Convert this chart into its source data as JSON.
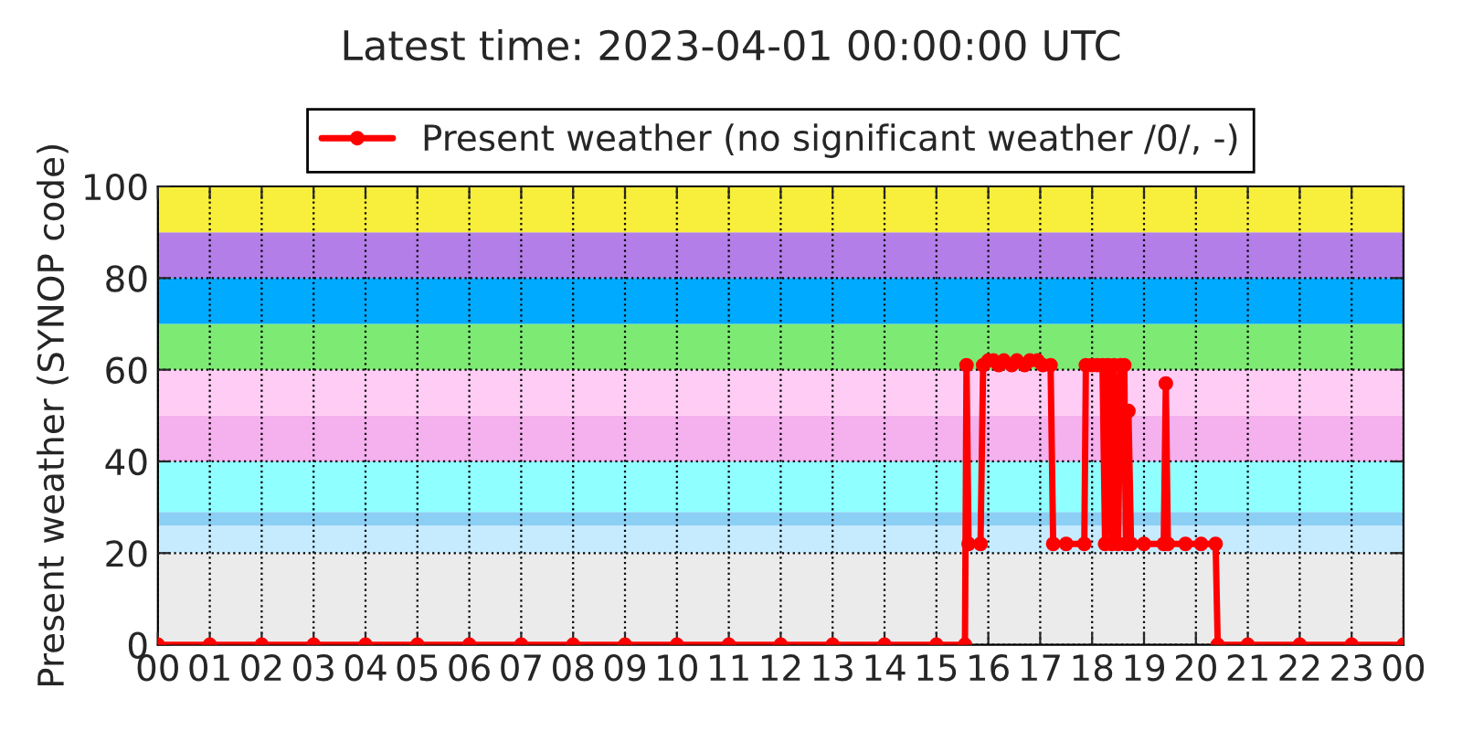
{
  "chart_data": {
    "type": "line",
    "title": "Latest time: 2023-04-01 00:00:00 UTC",
    "ylabel": "Present weather (SYNOP code)",
    "x": [
      0,
      1,
      2,
      3,
      4,
      5,
      6,
      7,
      8,
      9,
      10,
      11,
      12,
      13,
      14,
      15,
      15.55,
      15.58,
      15.62,
      15.85,
      15.9,
      16.0,
      16.1,
      16.2,
      16.3,
      16.45,
      16.55,
      16.7,
      16.8,
      16.95,
      17.05,
      17.2,
      17.25,
      17.5,
      17.85,
      17.88,
      18.0,
      18.1,
      18.2,
      18.25,
      18.3,
      18.38,
      18.42,
      18.5,
      18.55,
      18.62,
      18.65,
      18.7,
      18.75,
      19.0,
      19.38,
      19.42,
      19.46,
      19.8,
      20.1,
      20.38,
      20.42,
      21,
      22,
      23,
      24
    ],
    "series": [
      {
        "name": "Present weather (no significant weather /0/, -)",
        "color": "#ff0000",
        "values": [
          0,
          0,
          0,
          0,
          0,
          0,
          0,
          0,
          0,
          0,
          0,
          0,
          0,
          0,
          0,
          0,
          0,
          61,
          22,
          22,
          61,
          62,
          62,
          61,
          62,
          61,
          62,
          61,
          62,
          62,
          61,
          61,
          22,
          22,
          22,
          61,
          61,
          61,
          61,
          22,
          61,
          22,
          61,
          22,
          61,
          61,
          22,
          51,
          22,
          22,
          22,
          57,
          22,
          22,
          22,
          22,
          0,
          0,
          0,
          0,
          0
        ]
      }
    ],
    "xlim": [
      0,
      24
    ],
    "xticks": [
      {
        "value": 0,
        "label": "00"
      },
      {
        "value": 1,
        "label": "01"
      },
      {
        "value": 2,
        "label": "02"
      },
      {
        "value": 3,
        "label": "03"
      },
      {
        "value": 4,
        "label": "04"
      },
      {
        "value": 5,
        "label": "05"
      },
      {
        "value": 6,
        "label": "06"
      },
      {
        "value": 7,
        "label": "07"
      },
      {
        "value": 8,
        "label": "08"
      },
      {
        "value": 9,
        "label": "09"
      },
      {
        "value": 10,
        "label": "10"
      },
      {
        "value": 11,
        "label": "11"
      },
      {
        "value": 12,
        "label": "12"
      },
      {
        "value": 13,
        "label": "13"
      },
      {
        "value": 14,
        "label": "14"
      },
      {
        "value": 15,
        "label": "15"
      },
      {
        "value": 16,
        "label": "16"
      },
      {
        "value": 17,
        "label": "17"
      },
      {
        "value": 18,
        "label": "18"
      },
      {
        "value": 19,
        "label": "19"
      },
      {
        "value": 20,
        "label": "20"
      },
      {
        "value": 21,
        "label": "21"
      },
      {
        "value": 22,
        "label": "22"
      },
      {
        "value": 23,
        "label": "23"
      },
      {
        "value": 24,
        "label": "00"
      }
    ],
    "ylim": [
      0,
      100
    ],
    "yticks": [
      0,
      20,
      40,
      60,
      80,
      100
    ],
    "bands": [
      {
        "axis": "y",
        "from": 0,
        "to": 20,
        "color": "#ebebeb"
      },
      {
        "axis": "y",
        "from": 20,
        "to": 26,
        "color": "#c6ebff"
      },
      {
        "axis": "y",
        "from": 26,
        "to": 29,
        "color": "#8ccff5"
      },
      {
        "axis": "y",
        "from": 29,
        "to": 40,
        "color": "#8fffff"
      },
      {
        "axis": "y",
        "from": 40,
        "to": 50,
        "color": "#f5b0ee"
      },
      {
        "axis": "y",
        "from": 50,
        "to": 60,
        "color": "#ffccf5"
      },
      {
        "axis": "y",
        "from": 60,
        "to": 70,
        "color": "#7deb73"
      },
      {
        "axis": "y",
        "from": 70,
        "to": 80,
        "color": "#00aaff"
      },
      {
        "axis": "y",
        "from": 80,
        "to": 90,
        "color": "#b37ee8"
      },
      {
        "axis": "y",
        "from": 90,
        "to": 100,
        "color": "#f7ef3b"
      }
    ],
    "grid": true,
    "legend": "top",
    "marker": "circle",
    "line_style": "solid"
  }
}
